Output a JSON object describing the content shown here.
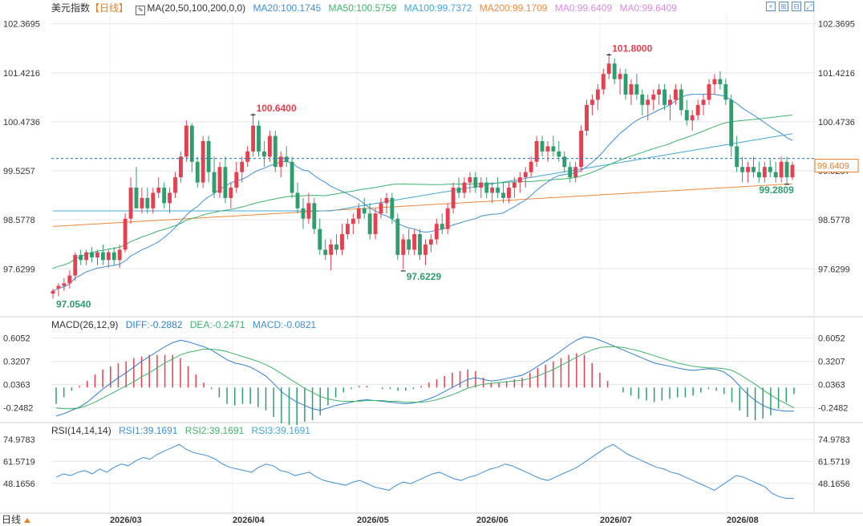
{
  "header": {
    "title": "美元指数",
    "period": "【日线】",
    "ma_params": "MA(20,50,100,200,0,0)",
    "ma20": "MA20:100.1745",
    "ma50": "MA50:100.5759",
    "ma100": "MA100:99.7372",
    "ma200": "MA200:99.1709",
    "ma0a": "MA0:99.6409",
    "ma0b": "MA0:99.6409"
  },
  "colors": {
    "up": "#e5404f",
    "down": "#2e9e6e",
    "ma20": "#3d8fd6",
    "ma50": "#3db36b",
    "ma100": "#41a8d4",
    "ma200": "#f0883e",
    "ma0": "#d98be0",
    "diff": "#2f7fd0",
    "dea": "#3db36b",
    "rsi": "#3d8fd6",
    "grid": "#e6e6e6",
    "price_label_bg": "#ffffff"
  },
  "macd_header": {
    "params": "MACD(26,12,9)",
    "diff": "DIFF:-0.2882",
    "dea": "DEA:-0.2471",
    "macd": "MACD:-0.0821"
  },
  "rsi_header": {
    "params": "RSI(14,14,14)",
    "rsi1": "RSI1:39.1691",
    "rsi2": "RSI2:39.1691",
    "rsi3": "RSI3:39.1691"
  },
  "footer": {
    "period_button": "日线"
  },
  "chart_data": {
    "type": "candlestick",
    "price_ticks": [
      "102.3695",
      "101.4216",
      "100.4736",
      "99.5257",
      "98.5778",
      "97.6299"
    ],
    "current_price": "99.6409",
    "annotations": {
      "high": "101.8000",
      "mid_high": "100.6400",
      "low": "97.0540",
      "mid_low": "97.6229",
      "recent_low": "99.2809"
    },
    "x_labels": [
      "2026/03",
      "2026/04",
      "2026/05",
      "2026/06",
      "2026/07",
      "2026/08"
    ],
    "ohlc": [
      [
        97.15,
        97.25,
        97.05,
        97.2
      ],
      [
        97.25,
        97.35,
        97.1,
        97.3
      ],
      [
        97.3,
        97.45,
        97.2,
        97.35
      ],
      [
        97.35,
        97.6,
        97.25,
        97.5
      ],
      [
        97.5,
        97.95,
        97.4,
        97.9
      ],
      [
        97.9,
        98.0,
        97.7,
        97.8
      ],
      [
        97.8,
        98.0,
        97.7,
        97.95
      ],
      [
        97.95,
        98.05,
        97.75,
        97.85
      ],
      [
        97.85,
        98.0,
        97.7,
        97.95
      ],
      [
        97.95,
        98.1,
        97.7,
        97.8
      ],
      [
        97.8,
        98.0,
        97.65,
        97.95
      ],
      [
        97.95,
        98.05,
        97.7,
        97.8
      ],
      [
        97.8,
        98.1,
        97.65,
        98.0
      ],
      [
        98.0,
        98.7,
        97.95,
        98.6
      ],
      [
        98.6,
        99.4,
        98.5,
        99.2
      ],
      [
        99.2,
        99.6,
        98.8,
        98.8
      ],
      [
        98.8,
        99.2,
        98.7,
        99.0
      ],
      [
        99.0,
        99.2,
        98.7,
        98.8
      ],
      [
        98.8,
        99.2,
        98.7,
        99.1
      ],
      [
        99.1,
        99.4,
        99.0,
        99.2
      ],
      [
        99.2,
        99.3,
        98.8,
        98.9
      ],
      [
        98.9,
        99.2,
        98.7,
        99.1
      ],
      [
        99.1,
        99.5,
        99.0,
        99.4
      ],
      [
        99.4,
        99.9,
        99.3,
        99.8
      ],
      [
        99.8,
        100.5,
        99.7,
        100.4
      ],
      [
        100.4,
        100.45,
        99.5,
        99.7
      ],
      [
        99.7,
        99.8,
        99.2,
        99.3
      ],
      [
        99.3,
        100.2,
        99.2,
        100.1
      ],
      [
        100.1,
        100.2,
        99.3,
        99.5
      ],
      [
        99.5,
        99.8,
        99.0,
        99.1
      ],
      [
        99.1,
        99.7,
        99.0,
        99.6
      ],
      [
        99.6,
        99.8,
        98.9,
        99.0
      ],
      [
        99.0,
        99.3,
        98.8,
        99.2
      ],
      [
        99.2,
        99.7,
        99.1,
        99.5
      ],
      [
        99.5,
        99.8,
        99.3,
        99.7
      ],
      [
        99.7,
        100.0,
        99.6,
        99.9
      ],
      [
        99.9,
        100.64,
        99.8,
        100.4
      ],
      [
        100.4,
        100.5,
        99.8,
        99.9
      ],
      [
        99.9,
        100.1,
        99.6,
        99.8
      ],
      [
        99.8,
        100.3,
        99.7,
        100.2
      ],
      [
        100.2,
        100.3,
        99.5,
        99.6
      ],
      [
        99.6,
        99.9,
        99.4,
        99.8
      ],
      [
        99.8,
        100.0,
        99.6,
        99.7
      ],
      [
        99.7,
        99.8,
        99.0,
        99.1
      ],
      [
        99.1,
        99.3,
        98.7,
        98.8
      ],
      [
        98.8,
        99.0,
        98.4,
        98.6
      ],
      [
        98.6,
        99.1,
        98.5,
        98.9
      ],
      [
        98.9,
        99.0,
        98.3,
        98.4
      ],
      [
        98.4,
        98.6,
        97.9,
        98.0
      ],
      [
        98.0,
        98.2,
        97.8,
        97.9
      ],
      [
        97.9,
        98.2,
        97.6,
        98.1
      ],
      [
        98.1,
        98.3,
        97.9,
        98.0
      ],
      [
        98.0,
        98.5,
        97.9,
        98.3
      ],
      [
        98.3,
        98.6,
        98.2,
        98.5
      ],
      [
        98.5,
        98.7,
        98.3,
        98.6
      ],
      [
        98.6,
        98.9,
        98.5,
        98.8
      ],
      [
        98.8,
        99.0,
        98.6,
        98.7
      ],
      [
        98.7,
        98.9,
        98.2,
        98.3
      ],
      [
        98.3,
        98.8,
        98.2,
        98.7
      ],
      [
        98.7,
        99.0,
        98.6,
        98.9
      ],
      [
        98.9,
        99.1,
        98.7,
        99.0
      ],
      [
        99.0,
        99.1,
        98.5,
        98.6
      ],
      [
        98.6,
        98.7,
        97.8,
        97.9
      ],
      [
        97.9,
        98.3,
        97.62,
        98.2
      ],
      [
        98.2,
        98.4,
        97.9,
        98.0
      ],
      [
        98.0,
        98.4,
        97.9,
        98.3
      ],
      [
        98.3,
        98.4,
        97.8,
        97.9
      ],
      [
        97.9,
        98.2,
        97.7,
        98.1
      ],
      [
        98.1,
        98.3,
        97.95,
        98.2
      ],
      [
        98.2,
        98.6,
        98.1,
        98.5
      ],
      [
        98.5,
        98.7,
        98.3,
        98.4
      ],
      [
        98.4,
        98.9,
        98.3,
        98.8
      ],
      [
        98.8,
        99.3,
        98.7,
        99.2
      ],
      [
        99.2,
        99.4,
        99.0,
        99.1
      ],
      [
        99.1,
        99.4,
        99.0,
        99.3
      ],
      [
        99.3,
        99.5,
        99.1,
        99.4
      ],
      [
        99.4,
        99.5,
        99.1,
        99.2
      ],
      [
        99.2,
        99.4,
        99.0,
        99.3
      ],
      [
        99.3,
        99.4,
        99.0,
        99.1
      ],
      [
        99.1,
        99.3,
        98.9,
        99.2
      ],
      [
        99.2,
        99.4,
        99.0,
        99.1
      ],
      [
        99.1,
        99.3,
        98.9,
        99.0
      ],
      [
        99.0,
        99.3,
        98.9,
        99.2
      ],
      [
        99.2,
        99.4,
        99.0,
        99.3
      ],
      [
        99.3,
        99.5,
        99.1,
        99.4
      ],
      [
        99.4,
        99.6,
        99.2,
        99.5
      ],
      [
        99.5,
        99.8,
        99.4,
        99.7
      ],
      [
        99.7,
        100.2,
        99.6,
        100.1
      ],
      [
        100.1,
        100.2,
        99.8,
        99.9
      ],
      [
        99.9,
        100.1,
        99.7,
        100.0
      ],
      [
        100.0,
        100.2,
        99.8,
        99.9
      ],
      [
        99.9,
        100.1,
        99.7,
        99.8
      ],
      [
        99.8,
        99.9,
        99.5,
        99.6
      ],
      [
        99.6,
        99.7,
        99.3,
        99.4
      ],
      [
        99.4,
        99.7,
        99.3,
        99.6
      ],
      [
        99.6,
        100.4,
        99.5,
        100.3
      ],
      [
        100.3,
        100.9,
        100.2,
        100.8
      ],
      [
        100.8,
        101.0,
        100.6,
        100.9
      ],
      [
        100.9,
        101.2,
        100.7,
        101.1
      ],
      [
        101.1,
        101.5,
        101.0,
        101.4
      ],
      [
        101.4,
        101.8,
        101.3,
        101.6
      ],
      [
        101.6,
        101.7,
        101.2,
        101.3
      ],
      [
        101.3,
        101.5,
        101.0,
        101.4
      ],
      [
        101.4,
        101.5,
        100.9,
        101.0
      ],
      [
        101.0,
        101.3,
        100.8,
        101.2
      ],
      [
        101.2,
        101.4,
        100.9,
        101.0
      ],
      [
        101.0,
        101.1,
        100.6,
        100.8
      ],
      [
        100.8,
        101.0,
        100.5,
        100.9
      ],
      [
        100.9,
        101.1,
        100.7,
        101.0
      ],
      [
        101.0,
        101.2,
        100.8,
        101.1
      ],
      [
        101.1,
        101.2,
        100.7,
        100.8
      ],
      [
        100.8,
        101.0,
        100.5,
        100.9
      ],
      [
        100.9,
        101.2,
        100.8,
        101.1
      ],
      [
        101.1,
        101.2,
        100.6,
        100.7
      ],
      [
        100.7,
        100.9,
        100.4,
        100.5
      ],
      [
        100.5,
        100.7,
        100.3,
        100.6
      ],
      [
        100.6,
        100.9,
        100.5,
        100.8
      ],
      [
        100.8,
        101.0,
        100.6,
        100.9
      ],
      [
        100.9,
        101.3,
        100.8,
        101.2
      ],
      [
        101.2,
        101.4,
        101.0,
        101.3
      ],
      [
        101.3,
        101.45,
        101.1,
        101.2
      ],
      [
        101.2,
        101.3,
        100.8,
        100.9
      ],
      [
        100.9,
        101.0,
        99.8,
        100.0
      ],
      [
        100.0,
        100.2,
        99.5,
        99.6
      ],
      [
        99.6,
        99.8,
        99.3,
        99.5
      ],
      [
        99.5,
        99.7,
        99.3,
        99.6
      ],
      [
        99.6,
        99.8,
        99.4,
        99.5
      ],
      [
        99.5,
        99.7,
        99.3,
        99.4
      ],
      [
        99.4,
        99.7,
        99.3,
        99.6
      ],
      [
        99.6,
        99.75,
        99.4,
        99.5
      ],
      [
        99.5,
        99.7,
        99.3,
        99.4
      ],
      [
        99.4,
        99.8,
        99.3,
        99.7
      ],
      [
        99.7,
        99.8,
        99.28,
        99.4
      ],
      [
        99.4,
        99.7,
        99.35,
        99.64
      ]
    ],
    "macd": {
      "ticks": [
        "0.6052",
        "0.3207",
        "0.0363",
        "-0.2482"
      ],
      "diff": [
        -0.35,
        -0.32,
        -0.28,
        -0.24,
        -0.18,
        -0.1,
        -0.02,
        0.05,
        0.12,
        0.18,
        0.25,
        0.32,
        0.38,
        0.44,
        0.5,
        0.55,
        0.58,
        0.56,
        0.53,
        0.5,
        0.46,
        0.4,
        0.34,
        0.3,
        0.28,
        0.25,
        0.2,
        0.14,
        0.05,
        -0.05,
        -0.12,
        -0.18,
        -0.22,
        -0.26,
        -0.28,
        -0.25,
        -0.22,
        -0.2,
        -0.18,
        -0.16,
        -0.15,
        -0.16,
        -0.17,
        -0.18,
        -0.19,
        -0.2,
        -0.19,
        -0.17,
        -0.14,
        -0.1,
        -0.05,
        0.0,
        0.05,
        0.1,
        0.12,
        0.1,
        0.08,
        0.09,
        0.11,
        0.13,
        0.15,
        0.2,
        0.26,
        0.32,
        0.38,
        0.45,
        0.52,
        0.58,
        0.62,
        0.61,
        0.58,
        0.54,
        0.5,
        0.46,
        0.42,
        0.38,
        0.34,
        0.3,
        0.28,
        0.26,
        0.24,
        0.22,
        0.21,
        0.22,
        0.23,
        0.22,
        0.19,
        0.12,
        0.02,
        -0.08,
        -0.16,
        -0.22,
        -0.26,
        -0.28,
        -0.29,
        -0.29
      ],
      "dea": [
        -0.25,
        -0.26,
        -0.26,
        -0.25,
        -0.22,
        -0.18,
        -0.13,
        -0.08,
        -0.03,
        0.02,
        0.07,
        0.13,
        0.18,
        0.24,
        0.3,
        0.35,
        0.4,
        0.43,
        0.45,
        0.47,
        0.47,
        0.46,
        0.44,
        0.41,
        0.38,
        0.35,
        0.32,
        0.28,
        0.23,
        0.17,
        0.11,
        0.05,
        -0.01,
        -0.06,
        -0.11,
        -0.14,
        -0.16,
        -0.17,
        -0.17,
        -0.17,
        -0.16,
        -0.16,
        -0.16,
        -0.17,
        -0.17,
        -0.18,
        -0.18,
        -0.18,
        -0.17,
        -0.15,
        -0.12,
        -0.09,
        -0.05,
        -0.01,
        0.02,
        0.04,
        0.05,
        0.06,
        0.07,
        0.08,
        0.09,
        0.11,
        0.14,
        0.18,
        0.22,
        0.27,
        0.32,
        0.37,
        0.42,
        0.46,
        0.49,
        0.5,
        0.5,
        0.49,
        0.47,
        0.45,
        0.42,
        0.39,
        0.36,
        0.33,
        0.3,
        0.28,
        0.26,
        0.25,
        0.24,
        0.24,
        0.23,
        0.21,
        0.16,
        0.1,
        0.04,
        -0.03,
        -0.09,
        -0.15,
        -0.2,
        -0.25
      ]
    },
    "rsi": {
      "ticks": [
        "74.9783",
        "61.5719",
        "48.1656"
      ],
      "values": [
        52,
        54,
        53,
        55,
        56,
        54,
        57,
        55,
        58,
        60,
        59,
        62,
        64,
        63,
        66,
        68,
        70,
        72,
        69,
        67,
        66,
        65,
        63,
        60,
        58,
        57,
        56,
        55,
        58,
        60,
        59,
        56,
        55,
        53,
        54,
        55,
        52,
        50,
        49,
        48,
        47,
        49,
        50,
        48,
        46,
        45,
        44,
        47,
        49,
        48,
        50,
        52,
        54,
        55,
        53,
        51,
        50,
        52,
        53,
        55,
        57,
        58,
        60,
        59,
        57,
        55,
        53,
        51,
        50,
        52,
        54,
        56,
        58,
        61,
        64,
        67,
        70,
        72,
        69,
        66,
        64,
        62,
        60,
        58,
        57,
        55,
        54,
        52,
        50,
        48,
        46,
        44,
        47,
        50,
        53,
        52,
        50,
        48,
        46,
        42,
        40,
        39,
        39
      ]
    }
  }
}
